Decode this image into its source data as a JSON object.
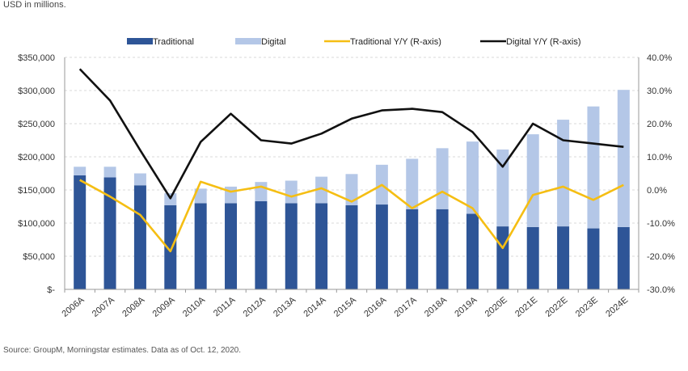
{
  "chart_data": {
    "type": "bar",
    "unit_note": "USD in millions.",
    "source": "Source: GroupM, Morningstar estimates. Data as of Oct. 12, 2020.",
    "categories": [
      "2006A",
      "2007A",
      "2008A",
      "2009A",
      "2010A",
      "2011A",
      "2012A",
      "2013A",
      "2014A",
      "2015A",
      "2016A",
      "2017A",
      "2018A",
      "2019A",
      "2020E",
      "2021E",
      "2022E",
      "2023E",
      "2024E"
    ],
    "series": [
      {
        "name": "Traditional",
        "kind": "bar",
        "axis": "left",
        "color": "#2e5597",
        "values": [
          172000,
          169000,
          157000,
          127000,
          130000,
          130000,
          133000,
          130000,
          130000,
          127000,
          128000,
          121000,
          121000,
          114000,
          95000,
          94000,
          95000,
          92000,
          94000
        ]
      },
      {
        "name": "Digital",
        "kind": "bar",
        "axis": "left",
        "color": "#b4c7e7",
        "values": [
          13000,
          16000,
          18000,
          18000,
          22000,
          25000,
          29000,
          34000,
          40000,
          47000,
          60000,
          76000,
          92000,
          109000,
          116000,
          140000,
          161000,
          184000,
          207000
        ]
      },
      {
        "name": "Traditional Y/Y (R-axis)",
        "kind": "line",
        "axis": "right",
        "color": "#f5be13",
        "values": [
          3.0,
          -2.0,
          -7.5,
          -18.5,
          2.5,
          -0.5,
          1.0,
          -2.0,
          0.5,
          -3.5,
          1.5,
          -5.5,
          -0.5,
          -5.5,
          -17.5,
          -1.5,
          1.0,
          -3.0,
          1.5
        ]
      },
      {
        "name": "Digital Y/Y (R-axis)",
        "kind": "line",
        "axis": "right",
        "color": "#111111",
        "values": [
          36.5,
          27.0,
          12.0,
          -2.5,
          14.5,
          23.0,
          15.0,
          14.0,
          17.0,
          21.5,
          24.0,
          24.5,
          23.5,
          17.5,
          7.0,
          20.0,
          15.0,
          14.0,
          13.0
        ]
      }
    ],
    "y_left": {
      "min": 0,
      "max": 350000,
      "step": 50000,
      "tick_labels": [
        "$-",
        "$50,000",
        "$100,000",
        "$150,000",
        "$200,000",
        "$250,000",
        "$300,000",
        "$350,000"
      ]
    },
    "y_right": {
      "min": -30,
      "max": 40,
      "step": 10,
      "tick_labels": [
        "-30.0%",
        "-20.0%",
        "-10.0%",
        "0.0%",
        "10.0%",
        "20.0%",
        "30.0%",
        "40.0%"
      ]
    },
    "grid": true,
    "legend": "top"
  }
}
